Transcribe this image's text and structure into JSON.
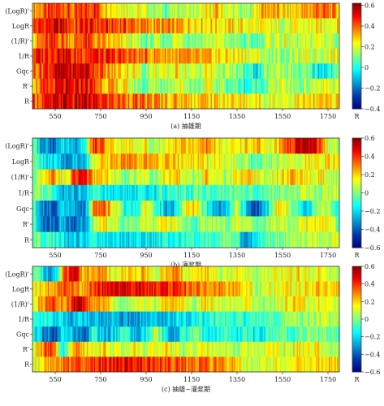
{
  "chart_data": [
    {
      "type": "heatmap",
      "caption": "(a) 抽雄期",
      "rows": [
        "(LogR)'",
        "LogR",
        "(1/R)'",
        "1/R",
        "Gqc",
        "R'",
        "R"
      ],
      "x_ticks": [
        "550",
        "750",
        "950",
        "1150",
        "1350",
        "1550",
        "1750"
      ],
      "x_tick_values": [
        550,
        750,
        950,
        1150,
        1350,
        1550,
        1750
      ],
      "xlim": [
        450,
        1800
      ],
      "colorbar_ticks": [
        "0.6",
        "0.4",
        "0.2",
        "0",
        "−0.2",
        "−0.4"
      ],
      "colorbar_tick_values": [
        0.6,
        0.4,
        0.2,
        0,
        -0.2,
        -0.4
      ],
      "colorbar_range": [
        -0.4,
        0.62
      ],
      "colorbar_label": "R",
      "values": [
        [
          0.33,
          0.38,
          0.41,
          0.45,
          0.36,
          0.42,
          0.48,
          0.34,
          0.28,
          0.25,
          0.22,
          0.18,
          0.15,
          0.1,
          0.16,
          0.18,
          0.14,
          0.22,
          0.3,
          0.2,
          0.14,
          0.1,
          0.28,
          0.35,
          0.3,
          0.25,
          0.3,
          0.32,
          0.4,
          0.36,
          0.31
        ],
        [
          0.42,
          0.46,
          0.5,
          0.52,
          0.4,
          0.48,
          0.45,
          0.44,
          0.42,
          0.42,
          0.38,
          0.35,
          0.34,
          0.33,
          0.32,
          0.31,
          0.3,
          0.28,
          0.27,
          0.26,
          0.25,
          0.24,
          0.22,
          0.2,
          0.2,
          0.2,
          0.2,
          0.22,
          0.22,
          0.25,
          0.26
        ],
        [
          0.3,
          0.38,
          0.43,
          0.4,
          0.34,
          0.46,
          0.36,
          0.3,
          0.26,
          0.22,
          0.16,
          0.08,
          0.12,
          0.1,
          0.2,
          0.16,
          0.12,
          0.16,
          0.18,
          0.14,
          0.1,
          0.05,
          0.08,
          0.16,
          0.2,
          0.18,
          0.14,
          0.16,
          0.22,
          0.18,
          0.14
        ],
        [
          0.44,
          0.48,
          0.5,
          0.55,
          0.42,
          0.47,
          0.48,
          0.44,
          0.42,
          0.42,
          0.38,
          0.36,
          0.35,
          0.34,
          0.33,
          0.31,
          0.3,
          0.28,
          0.27,
          0.26,
          0.25,
          0.24,
          0.2,
          0.14,
          0.12,
          0.14,
          0.16,
          0.18,
          0.2,
          0.22,
          0.24
        ],
        [
          0.38,
          0.45,
          0.5,
          0.56,
          0.5,
          0.55,
          0.48,
          0.35,
          0.3,
          0.28,
          0.24,
          0.12,
          0.22,
          0.16,
          0.26,
          0.2,
          0.14,
          0.24,
          0.18,
          0.14,
          0.1,
          0.02,
          -0.04,
          0.1,
          0.18,
          0.14,
          0.08,
          0.06,
          -0.05,
          0.0,
          0.05
        ],
        [
          0.34,
          0.38,
          0.44,
          0.5,
          0.45,
          0.52,
          0.42,
          0.34,
          0.28,
          0.24,
          0.14,
          0.08,
          0.16,
          0.12,
          0.22,
          0.18,
          0.1,
          0.2,
          0.14,
          0.1,
          0.06,
          0.0,
          0.05,
          0.12,
          0.18,
          0.15,
          0.12,
          0.14,
          0.2,
          0.18,
          0.16
        ],
        [
          0.4,
          0.44,
          0.48,
          0.55,
          0.5,
          0.55,
          0.48,
          0.45,
          0.42,
          0.4,
          0.38,
          0.36,
          0.34,
          0.33,
          0.32,
          0.31,
          0.3,
          0.29,
          0.28,
          0.27,
          0.26,
          0.25,
          0.24,
          0.22,
          0.22,
          0.23,
          0.24,
          0.25,
          0.26,
          0.27,
          0.28
        ]
      ]
    },
    {
      "type": "heatmap",
      "caption": "(b) 灌浆期",
      "rows": [
        "(LogR)'",
        "LogR",
        "(1/R)'",
        "1/R",
        "Gqc",
        "R'",
        "R"
      ],
      "x_ticks": [
        "550",
        "750",
        "950",
        "1150",
        "1350",
        "1550",
        "1750"
      ],
      "x_tick_values": [
        550,
        750,
        950,
        1150,
        1350,
        1550,
        1750
      ],
      "xlim": [
        450,
        1800
      ],
      "colorbar_ticks": [
        "0.6",
        "0.4",
        "0.2",
        "0",
        "−0.2",
        "−0.4",
        "−0.6"
      ],
      "colorbar_tick_values": [
        0.6,
        0.4,
        0.2,
        0,
        -0.2,
        -0.4,
        -0.6
      ],
      "colorbar_range": [
        -0.6,
        0.6
      ],
      "colorbar_label": "R",
      "values": [
        [
          -0.05,
          -0.3,
          -0.4,
          -0.2,
          -0.3,
          -0.1,
          0.4,
          0.3,
          0.1,
          0.2,
          0.1,
          0.15,
          0.0,
          0.1,
          0.2,
          0.25,
          0.1,
          0.3,
          0.2,
          0.05,
          0.15,
          0.2,
          0.25,
          0.1,
          0.2,
          0.35,
          0.5,
          0.55,
          0.4,
          0.1,
          0.05
        ],
        [
          -0.05,
          -0.15,
          -0.2,
          -0.25,
          -0.3,
          -0.25,
          0.1,
          0.2,
          0.25,
          0.28,
          0.28,
          0.26,
          0.24,
          0.22,
          0.2,
          0.18,
          0.16,
          0.14,
          0.12,
          0.1,
          0.08,
          0.0,
          -0.1,
          0.0,
          0.05,
          0.1,
          0.1,
          0.15,
          0.15,
          0.18,
          0.2
        ],
        [
          0.0,
          0.2,
          0.3,
          0.1,
          0.35,
          0.45,
          0.2,
          0.25,
          0.1,
          -0.05,
          0.05,
          0.1,
          0.0,
          0.15,
          0.25,
          0.1,
          0.0,
          0.2,
          0.1,
          0.05,
          0.15,
          0.2,
          0.1,
          0.05,
          0.15,
          0.2,
          0.25,
          0.1,
          0.2,
          0.1,
          0.05
        ],
        [
          0.0,
          0.0,
          -0.1,
          -0.25,
          -0.3,
          -0.2,
          -0.1,
          -0.15,
          -0.2,
          -0.2,
          -0.18,
          -0.16,
          -0.14,
          -0.12,
          -0.1,
          -0.08,
          -0.06,
          -0.05,
          -0.04,
          -0.03,
          -0.02,
          -0.05,
          -0.1,
          -0.05,
          0.0,
          0.0,
          0.02,
          0.05,
          0.05,
          0.08,
          0.1
        ],
        [
          -0.1,
          -0.3,
          -0.4,
          -0.2,
          -0.3,
          -0.4,
          0.3,
          0.35,
          0.1,
          -0.1,
          -0.2,
          0.1,
          0.0,
          -0.3,
          -0.2,
          0.1,
          0.2,
          -0.1,
          -0.3,
          -0.2,
          0.1,
          -0.3,
          -0.4,
          -0.2,
          0.2,
          0.1,
          -0.1,
          -0.2,
          0.1,
          0.0,
          -0.1
        ],
        [
          -0.1,
          -0.35,
          -0.4,
          -0.2,
          -0.45,
          -0.3,
          0.05,
          0.2,
          0.1,
          -0.05,
          0.0,
          0.1,
          0.05,
          0.2,
          0.1,
          0.0,
          -0.1,
          0.1,
          0.05,
          0.0,
          0.1,
          0.05,
          -0.1,
          0.05,
          0.1,
          0.05,
          0.1,
          0.15,
          0.2,
          0.1,
          0.0
        ],
        [
          0.0,
          -0.05,
          -0.1,
          -0.2,
          -0.25,
          -0.2,
          -0.15,
          -0.18,
          -0.22,
          -0.22,
          -0.2,
          -0.18,
          -0.16,
          -0.14,
          -0.12,
          -0.1,
          -0.08,
          -0.06,
          -0.05,
          -0.04,
          -0.03,
          -0.4,
          -0.1,
          0.0,
          0.0,
          0.02,
          0.04,
          0.05,
          0.06,
          0.08,
          0.1
        ]
      ]
    },
    {
      "type": "heatmap",
      "caption": "(c) 抽雄−灌浆期",
      "rows": [
        "(LogR)'",
        "LogR",
        "(1/R)'",
        "1/R",
        "Gqc",
        "R'",
        "R"
      ],
      "x_ticks": [
        "550",
        "750",
        "950",
        "1150",
        "1350",
        "1550",
        "1750"
      ],
      "x_tick_values": [
        550,
        750,
        950,
        1150,
        1350,
        1550,
        1750
      ],
      "xlim": [
        450,
        1800
      ],
      "colorbar_ticks": [
        "0.6",
        "0.4",
        "0.2",
        "0",
        "−0.2",
        "−0.4",
        "−0.6"
      ],
      "colorbar_tick_values": [
        0.6,
        0.4,
        0.2,
        0,
        -0.2,
        -0.4,
        -0.6
      ],
      "colorbar_range": [
        -0.6,
        0.6
      ],
      "colorbar_label": "R",
      "values": [
        [
          0.05,
          -0.2,
          -0.3,
          0.3,
          0.5,
          0.2,
          0.3,
          0.25,
          0.1,
          0.2,
          0.15,
          0.25,
          0.1,
          0.2,
          0.3,
          0.15,
          0.1,
          0.2,
          0.1,
          0.05,
          0.15,
          0.1,
          0.05,
          0.1,
          0.15,
          0.1,
          0.2,
          0.1,
          0.15,
          0.1,
          0.05
        ],
        [
          0.1,
          0.2,
          0.3,
          0.35,
          0.3,
          0.25,
          0.4,
          0.45,
          0.48,
          0.48,
          0.46,
          0.44,
          0.42,
          0.4,
          0.38,
          0.35,
          0.32,
          0.3,
          0.28,
          0.26,
          0.24,
          0.15,
          0.05,
          0.1,
          0.12,
          0.14,
          0.15,
          0.18,
          0.2,
          0.22,
          0.24
        ],
        [
          0.1,
          0.3,
          0.4,
          0.2,
          0.5,
          0.45,
          0.2,
          0.3,
          0.1,
          0.0,
          0.1,
          0.15,
          0.05,
          0.2,
          0.25,
          0.1,
          0.05,
          0.2,
          0.15,
          0.05,
          0.1,
          0.15,
          0.05,
          0.0,
          0.1,
          0.15,
          0.2,
          0.1,
          0.15,
          0.1,
          0.05
        ],
        [
          -0.05,
          -0.1,
          -0.15,
          -0.2,
          -0.25,
          -0.2,
          -0.25,
          -0.28,
          -0.3,
          -0.3,
          -0.28,
          -0.26,
          -0.24,
          -0.22,
          -0.2,
          -0.18,
          -0.16,
          -0.14,
          -0.12,
          -0.1,
          -0.08,
          -0.1,
          -0.05,
          -0.05,
          0.0,
          0.0,
          0.02,
          0.04,
          0.05,
          0.06,
          0.08
        ],
        [
          -0.1,
          -0.3,
          -0.45,
          -0.2,
          -0.3,
          -0.4,
          -0.1,
          -0.3,
          -0.2,
          -0.1,
          -0.3,
          -0.2,
          0.1,
          -0.2,
          -0.3,
          -0.1,
          0.05,
          -0.2,
          -0.1,
          -0.05,
          -0.15,
          -0.1,
          -0.2,
          -0.1,
          0.0,
          -0.05,
          -0.1,
          0.05,
          -0.05,
          0.0,
          -0.05
        ],
        [
          0.1,
          0.3,
          0.4,
          -0.2,
          0.3,
          0.2,
          0.1,
          0.2,
          0.05,
          0.1,
          0.15,
          0.05,
          0.1,
          0.2,
          0.1,
          0.05,
          0.1,
          0.15,
          0.05,
          0.1,
          0.05,
          0.1,
          0.05,
          0.1,
          0.15,
          0.1,
          0.2,
          0.1,
          0.15,
          0.1,
          0.05
        ],
        [
          0.1,
          0.2,
          0.25,
          0.3,
          0.35,
          0.3,
          0.4,
          0.42,
          0.45,
          0.45,
          0.44,
          0.42,
          0.4,
          0.38,
          0.36,
          0.34,
          0.32,
          0.3,
          0.28,
          0.26,
          0.24,
          0.1,
          0.05,
          0.1,
          0.12,
          0.14,
          0.15,
          0.16,
          0.18,
          0.2,
          0.22
        ]
      ]
    }
  ]
}
